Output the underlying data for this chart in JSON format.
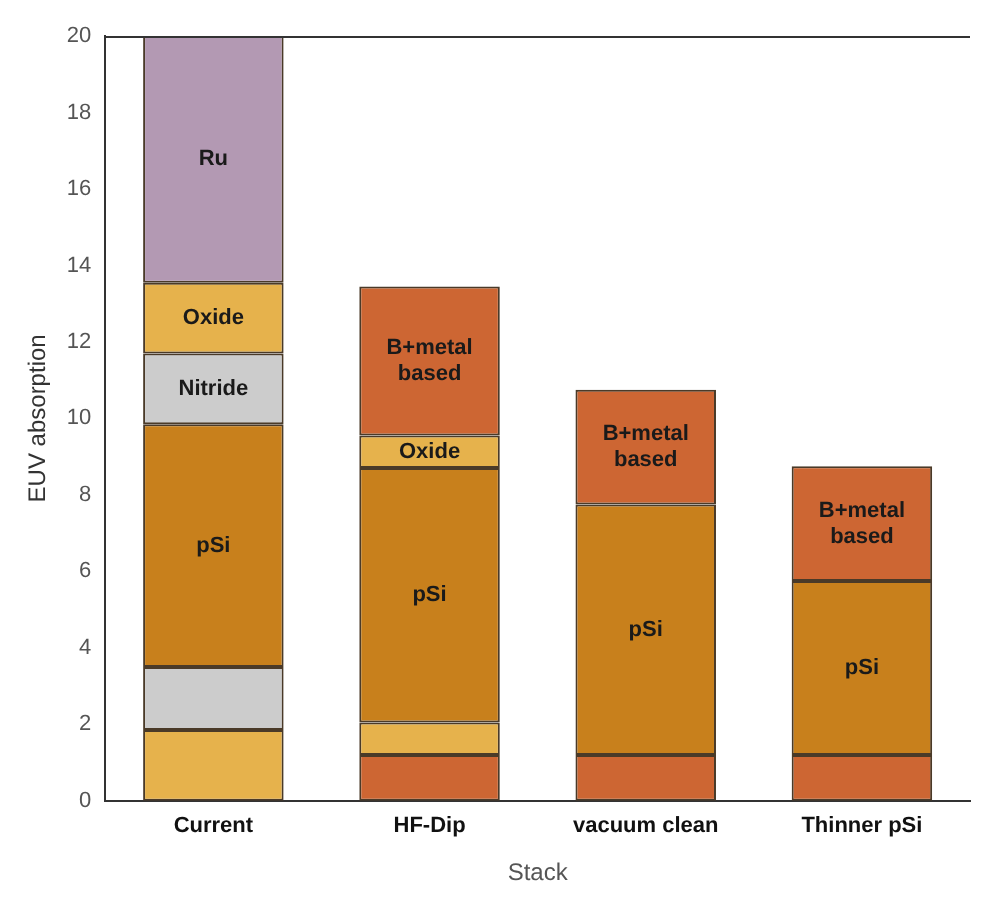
{
  "chart_data": {
    "type": "bar",
    "stacked": true,
    "xlabel": "Stack",
    "ylabel": "EUV absorption",
    "categories": [
      "Current",
      "HF-Dip",
      "vacuum clean",
      "Thinner pSi"
    ],
    "series": [
      {
        "values": [
          1.85,
          1.2,
          1.2,
          1.2
        ],
        "colors": [
          "#e6b24c",
          "#cd6633",
          "#cd6633",
          "#cd6633"
        ]
      },
      {
        "values": [
          1.65,
          0.85,
          6.55,
          4.55
        ],
        "colors": [
          "#cccccc",
          "#e6b24c",
          "#c8801c",
          "#c8801c"
        ],
        "value_labels": [
          null,
          null,
          "pSi",
          "pSi"
        ]
      },
      {
        "values": [
          6.35,
          6.65,
          3.0,
          3.0
        ],
        "colors": [
          "#c8801c",
          "#c8801c",
          "#cd6633",
          "#cd6633"
        ],
        "value_labels": [
          "pSi",
          "pSi",
          "B+metal\nbased",
          "B+metal\nbased"
        ]
      },
      {
        "values": [
          1.85,
          0.85,
          null,
          null
        ],
        "colors": [
          "#cccccc",
          "#e6b24c",
          "#cd6633",
          "#cd6633"
        ],
        "value_labels": [
          "Nitride",
          "Oxide",
          null,
          null
        ]
      },
      {
        "values": [
          1.85,
          3.9,
          null,
          null
        ],
        "colors": [
          "#e6b24c",
          "#cd6633",
          "#cd6633",
          "#cd6633"
        ],
        "value_labels": [
          "Oxide",
          "B+metal\nbased",
          null,
          null
        ]
      },
      {
        "values": [
          6.45,
          null,
          null,
          null
        ],
        "colors": [
          "#b399b3",
          "#b399b3",
          "#b399b3",
          "#b399b3"
        ],
        "value_labels": [
          "Ru",
          null,
          null,
          null
        ]
      }
    ],
    "ylim": [
      0,
      20
    ],
    "yticks": [
      0,
      2,
      4,
      6,
      8,
      10,
      12,
      14,
      16,
      18,
      20
    ],
    "grid": false,
    "legend": false
  }
}
